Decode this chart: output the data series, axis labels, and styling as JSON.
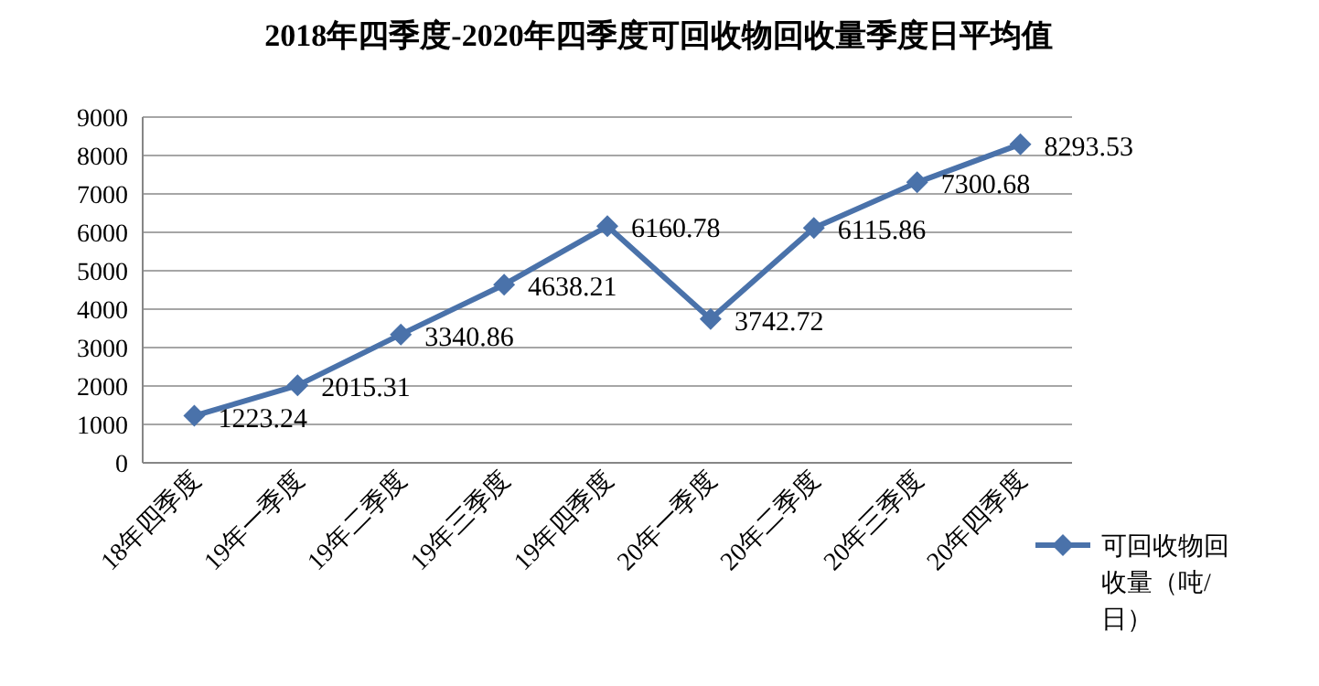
{
  "chart_data": {
    "type": "line",
    "title": "2018年四季度-2020年四季度可回收物回收量季度日平均值",
    "categories": [
      "18年四季度",
      "19年一季度",
      "19年二季度",
      "19年三季度",
      "19年四季度",
      "20年一季度",
      "20年二季度",
      "20年三季度",
      "20年四季度"
    ],
    "series": [
      {
        "name": "可回收物回收量（吨/日）",
        "color": "#4a72aa",
        "values": [
          1223.24,
          2015.31,
          3340.86,
          4638.21,
          6160.78,
          3742.72,
          6115.86,
          7300.68,
          8293.53
        ]
      }
    ],
    "ylim": [
      0,
      9000
    ],
    "yticks": [
      0,
      1000,
      2000,
      3000,
      4000,
      5000,
      6000,
      7000,
      8000,
      9000
    ],
    "grid": "y",
    "legend": "bottom right",
    "marker": "diamond",
    "line_style": "solid",
    "data_labels": true
  }
}
